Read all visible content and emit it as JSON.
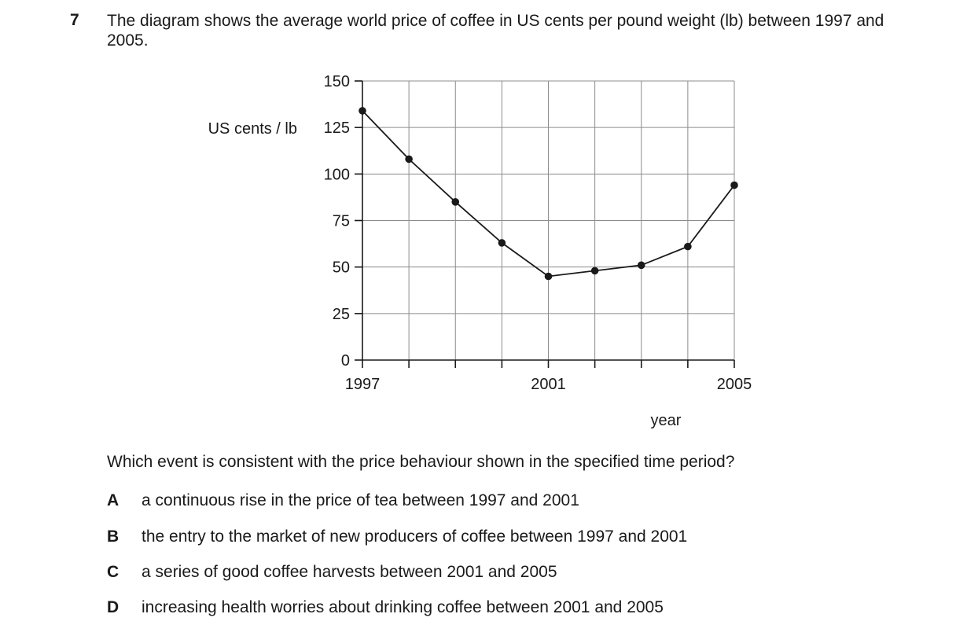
{
  "question": {
    "number": "7",
    "stem": "The diagram shows the average world price of coffee in US cents per pound weight (lb) between 1997 and 2005.",
    "prompt": "Which event is consistent with the price behaviour shown in the specified time period?",
    "options": [
      {
        "letter": "A",
        "text": "a continuous rise in the price of tea between 1997 and 2001"
      },
      {
        "letter": "B",
        "text": "the entry to the market of new producers of coffee between 1997 and 2001"
      },
      {
        "letter": "C",
        "text": "a series of good coffee harvests between 2001 and 2005"
      },
      {
        "letter": "D",
        "text": "increasing health worries about drinking coffee between 2001 and 2005"
      }
    ]
  },
  "chart_data": {
    "type": "line",
    "xlabel": "year",
    "ylabel": "US cents / lb",
    "x": [
      1997,
      1998,
      1999,
      2000,
      2001,
      2002,
      2003,
      2004,
      2005
    ],
    "xticklabels": [
      {
        "x": 1997,
        "label": "1997"
      },
      {
        "x": 2001,
        "label": "2001"
      },
      {
        "x": 2005,
        "label": "2005"
      }
    ],
    "yticks": [
      0,
      25,
      50,
      75,
      100,
      125,
      150
    ],
    "series": [
      {
        "values": [
          134,
          108,
          85,
          63,
          45,
          48,
          51,
          61,
          94
        ]
      }
    ],
    "xlim": [
      1997,
      2005
    ],
    "ylim": [
      0,
      150
    ],
    "grid": true,
    "colors": {
      "line": "#1a1a1a",
      "grid": "#8c8c8c"
    }
  }
}
